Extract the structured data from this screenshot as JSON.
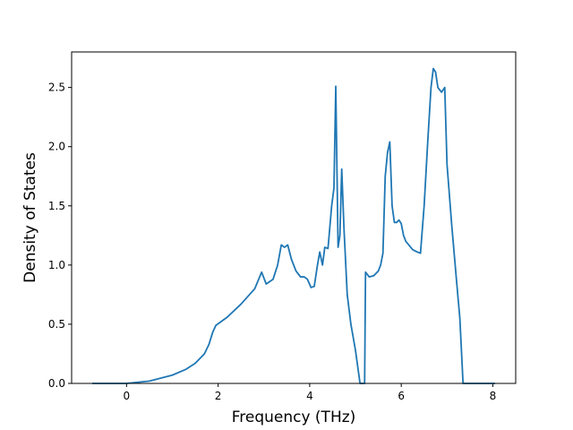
{
  "chart_data": {
    "type": "line",
    "xlabel": "Frequency (THz)",
    "ylabel": "Density of States",
    "xlim": [
      -1.2,
      8.5
    ],
    "ylim": [
      0.0,
      2.8
    ],
    "xticks": [
      0,
      2,
      4,
      6,
      8
    ],
    "xtick_labels": [
      "0",
      "2",
      "4",
      "6",
      "8"
    ],
    "yticks": [
      0.0,
      0.5,
      1.0,
      1.5,
      2.0,
      2.5
    ],
    "ytick_labels": [
      "0.0",
      "0.5",
      "1.0",
      "1.5",
      "2.0",
      "2.5"
    ],
    "grid": false,
    "series_color": "#1f77b4",
    "series": [
      {
        "x": [
          -0.75,
          0.0,
          0.5,
          1.0,
          1.3,
          1.5,
          1.7,
          1.8,
          1.88,
          1.95,
          2.2,
          2.5,
          2.8,
          2.95,
          3.05,
          3.2,
          3.3,
          3.38,
          3.45,
          3.52,
          3.6,
          3.7,
          3.8,
          3.88,
          3.95,
          4.03,
          4.1,
          4.17,
          4.22,
          4.28,
          4.33,
          4.4,
          4.48,
          4.53,
          4.57,
          4.62,
          4.66,
          4.7,
          4.75,
          4.82,
          4.9,
          5.0,
          5.1,
          5.15,
          5.2,
          5.22,
          5.3,
          5.4,
          5.5,
          5.55,
          5.6,
          5.65,
          5.7,
          5.75,
          5.8,
          5.85,
          5.9,
          5.95,
          6.0,
          6.05,
          6.1,
          6.25,
          6.35,
          6.42,
          6.5,
          6.58,
          6.65,
          6.7,
          6.75,
          6.8,
          6.88,
          6.95,
          7.0,
          7.1,
          7.2,
          7.28,
          7.35,
          8.05
        ],
        "y": [
          0.0,
          0.0,
          0.02,
          0.07,
          0.12,
          0.17,
          0.25,
          0.33,
          0.43,
          0.49,
          0.56,
          0.67,
          0.8,
          0.94,
          0.84,
          0.88,
          1.0,
          1.17,
          1.15,
          1.17,
          1.05,
          0.95,
          0.9,
          0.9,
          0.88,
          0.81,
          0.82,
          1.0,
          1.11,
          1.0,
          1.15,
          1.14,
          1.5,
          1.65,
          2.51,
          1.15,
          1.25,
          1.81,
          1.3,
          0.75,
          0.5,
          0.28,
          0.0,
          0.0,
          0.0,
          0.94,
          0.9,
          0.91,
          0.95,
          1.0,
          1.1,
          1.75,
          1.95,
          2.04,
          1.5,
          1.36,
          1.36,
          1.38,
          1.35,
          1.25,
          1.2,
          1.13,
          1.11,
          1.1,
          1.5,
          2.05,
          2.5,
          2.66,
          2.63,
          2.5,
          2.46,
          2.5,
          1.85,
          1.35,
          0.9,
          0.55,
          0.0,
          0.0
        ]
      }
    ]
  }
}
